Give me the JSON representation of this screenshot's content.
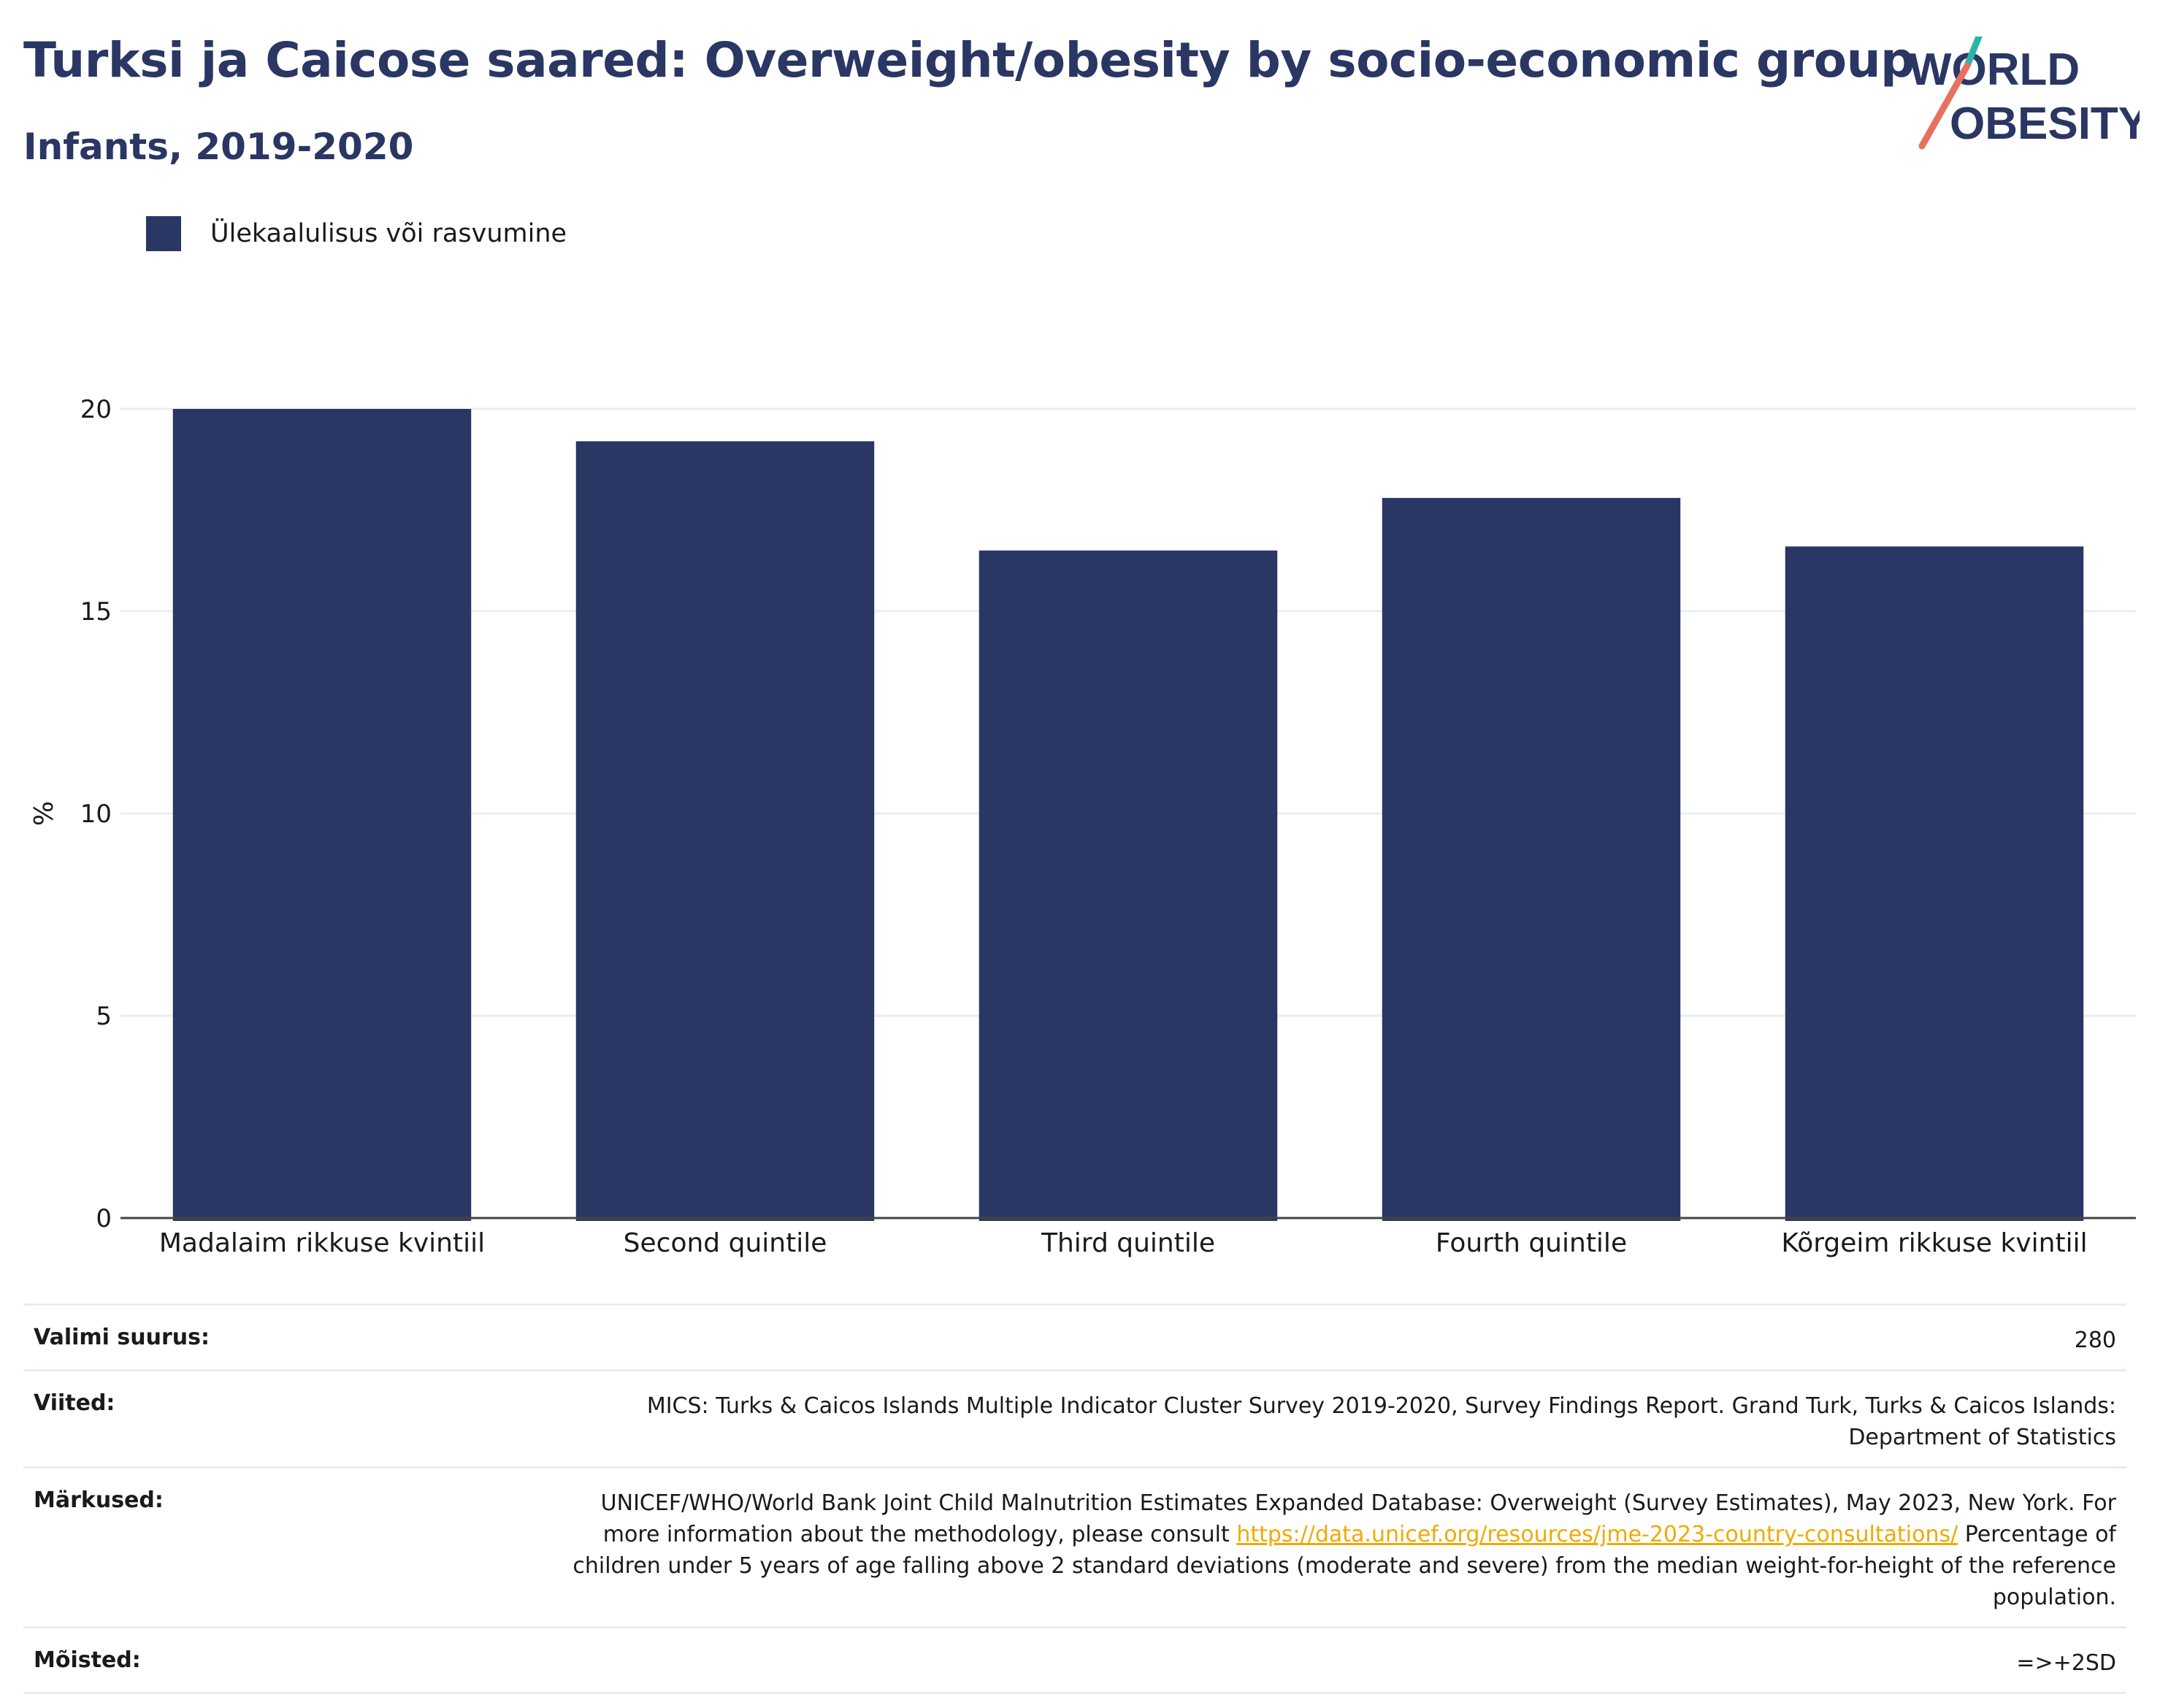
{
  "title": "Turksi ja Caicose saared: Overweight/obesity by socio-economic group",
  "subtitle": "Infants, 2019-2020",
  "logo": {
    "line1": "WORLD",
    "line2": "OBESITY"
  },
  "colors": {
    "bar": "#2a3663",
    "title": "#2a3663",
    "link": "#f2a900",
    "logo_teal": "#2bb5a8",
    "logo_coral": "#e8705e"
  },
  "chart_data": {
    "type": "bar",
    "categories": [
      "Madalaim rikkuse kvintiil",
      "Second quintile",
      "Third quintile",
      "Fourth quintile",
      "Kõrgeim rikkuse kvintiil"
    ],
    "series": [
      {
        "name": "Ülekaalulisus või rasvumine",
        "values": [
          20.0,
          19.2,
          16.5,
          17.8,
          16.6
        ]
      }
    ],
    "ylabel": "%",
    "ylim": [
      0,
      20
    ],
    "yticks": [
      0,
      5,
      10,
      15,
      20
    ],
    "grid": true,
    "legend": "top-left"
  },
  "meta": {
    "sample_label": "Valimi suurus:",
    "sample_value": "280",
    "refs_label": "Viited:",
    "refs_value": "MICS: Turks & Caicos Islands Multiple Indicator Cluster Survey 2019-2020, Survey Findings Report. Grand Turk, Turks & Caicos Islands: Department of Statistics",
    "notes_label": "Märkused:",
    "notes_text1": "UNICEF/WHO/World Bank Joint Child Malnutrition Estimates Expanded Database: Overweight (Survey Estimates), May 2023, New York. For more information about the methodology, please consult ",
    "notes_link": "https://data.unicef.org/resources/jme-2023-country-consultations/",
    "notes_text2": " Percentage of children under 5 years of age falling above 2 standard deviations (moderate and severe) from the median weight-for-height of the reference population.",
    "defs_label": "Mõisted:",
    "defs_value": "=>+2SD"
  }
}
